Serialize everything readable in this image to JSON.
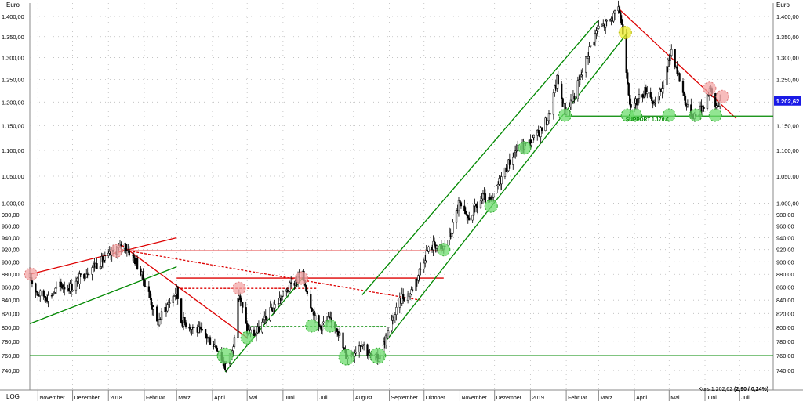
{
  "chart_data": {
    "type": "candlestick",
    "y_unit_left": "Euro",
    "y_unit_right": "Euro",
    "scale": "LOG",
    "ylim": [
      720,
      1420
    ],
    "xlim": [
      "2017-10-25",
      "2019-07-30"
    ],
    "y_ticks": [
      740,
      760,
      780,
      800,
      820,
      840,
      860,
      880,
      900,
      920,
      940,
      960,
      980,
      1000,
      1050,
      1100,
      1150,
      1200,
      1250,
      1300,
      1350,
      1400
    ],
    "y_tick_labels": [
      "740,00",
      "760,00",
      "780,00",
      "800,00",
      "820,00",
      "840,00",
      "860,00",
      "880,00",
      "900,00",
      "920,00",
      "940,00",
      "960,00",
      "980,00",
      "1.000,00",
      "1.050,00",
      "1.100,00",
      "1.150,00",
      "1.200,00",
      "1.250,00",
      "1.300,00",
      "1.350,00",
      "1.400,00"
    ],
    "x_tick_labels": [
      {
        "label": "November",
        "date": "2017-11-01"
      },
      {
        "label": "Dezember",
        "date": "2017-12-01"
      },
      {
        "label": "2018",
        "date": "2018-01-01"
      },
      {
        "label": "Februar",
        "date": "2018-02-01"
      },
      {
        "label": "März",
        "date": "2018-03-01"
      },
      {
        "label": "April",
        "date": "2018-04-01"
      },
      {
        "label": "Mai",
        "date": "2018-05-01"
      },
      {
        "label": "Juni",
        "date": "2018-06-01"
      },
      {
        "label": "Juli",
        "date": "2018-07-01"
      },
      {
        "label": "August",
        "date": "2018-08-01"
      },
      {
        "label": "September",
        "date": "2018-09-01"
      },
      {
        "label": "Oktober",
        "date": "2018-10-01"
      },
      {
        "label": "November",
        "date": "2018-11-01"
      },
      {
        "label": "Dezember",
        "date": "2018-12-01"
      },
      {
        "label": "2019",
        "date": "2019-01-01"
      },
      {
        "label": "Februar",
        "date": "2019-02-01"
      },
      {
        "label": "März",
        "date": "2019-03-01"
      },
      {
        "label": "April",
        "date": "2019-04-01"
      },
      {
        "label": "Mai",
        "date": "2019-05-01"
      },
      {
        "label": "Juni",
        "date": "2019-06-01"
      },
      {
        "label": "Juli",
        "date": "2019-07-01"
      }
    ],
    "grid": true,
    "price_path": [
      [
        "2017-10-25",
        875
      ],
      [
        "2017-11-01",
        850
      ],
      [
        "2017-11-10",
        845
      ],
      [
        "2017-11-20",
        862
      ],
      [
        "2017-12-01",
        860
      ],
      [
        "2017-12-10",
        880
      ],
      [
        "2017-12-20",
        895
      ],
      [
        "2017-12-30",
        905
      ],
      [
        "2018-01-08",
        920
      ],
      [
        "2018-01-15",
        928
      ],
      [
        "2018-01-25",
        900
      ],
      [
        "2018-02-05",
        850
      ],
      [
        "2018-02-12",
        805
      ],
      [
        "2018-02-20",
        830
      ],
      [
        "2018-03-01",
        855
      ],
      [
        "2018-03-05",
        810
      ],
      [
        "2018-03-15",
        800
      ],
      [
        "2018-03-25",
        790
      ],
      [
        "2018-04-05",
        772
      ],
      [
        "2018-04-12",
        745
      ],
      [
        "2018-04-18",
        765
      ],
      [
        "2018-04-24",
        850
      ],
      [
        "2018-05-01",
        795
      ],
      [
        "2018-05-08",
        790
      ],
      [
        "2018-05-20",
        820
      ],
      [
        "2018-06-01",
        848
      ],
      [
        "2018-06-12",
        870
      ],
      [
        "2018-06-18",
        878
      ],
      [
        "2018-06-25",
        835
      ],
      [
        "2018-07-01",
        800
      ],
      [
        "2018-07-10",
        810
      ],
      [
        "2018-07-18",
        800
      ],
      [
        "2018-07-25",
        760
      ],
      [
        "2018-08-01",
        765
      ],
      [
        "2018-08-08",
        780
      ],
      [
        "2018-08-15",
        760
      ],
      [
        "2018-08-22",
        755
      ],
      [
        "2018-08-29",
        785
      ],
      [
        "2018-09-05",
        815
      ],
      [
        "2018-09-12",
        845
      ],
      [
        "2018-09-19",
        850
      ],
      [
        "2018-09-26",
        880
      ],
      [
        "2018-10-03",
        915
      ],
      [
        "2018-10-10",
        930
      ],
      [
        "2018-10-17",
        920
      ],
      [
        "2018-10-24",
        945
      ],
      [
        "2018-10-31",
        1000
      ],
      [
        "2018-11-07",
        970
      ],
      [
        "2018-11-14",
        990
      ],
      [
        "2018-11-21",
        1010
      ],
      [
        "2018-11-28",
        1000
      ],
      [
        "2018-12-05",
        1040
      ],
      [
        "2018-12-12",
        1070
      ],
      [
        "2018-12-19",
        1100
      ],
      [
        "2018-12-27",
        1110
      ],
      [
        "2019-01-03",
        1120
      ],
      [
        "2019-01-10",
        1140
      ],
      [
        "2019-01-17",
        1170
      ],
      [
        "2019-01-24",
        1250
      ],
      [
        "2019-01-31",
        1180
      ],
      [
        "2019-02-07",
        1210
      ],
      [
        "2019-02-14",
        1260
      ],
      [
        "2019-02-21",
        1320
      ],
      [
        "2019-02-28",
        1370
      ],
      [
        "2019-03-07",
        1380
      ],
      [
        "2019-03-14",
        1400
      ],
      [
        "2019-03-19",
        1415
      ],
      [
        "2019-03-22",
        1360
      ],
      [
        "2019-03-26",
        1250
      ],
      [
        "2019-03-29",
        1180
      ],
      [
        "2019-04-05",
        1210
      ],
      [
        "2019-04-12",
        1230
      ],
      [
        "2019-04-19",
        1190
      ],
      [
        "2019-04-26",
        1240
      ],
      [
        "2019-05-03",
        1320
      ],
      [
        "2019-05-10",
        1250
      ],
      [
        "2019-05-17",
        1185
      ],
      [
        "2019-05-24",
        1170
      ],
      [
        "2019-05-31",
        1195
      ],
      [
        "2019-06-05",
        1230
      ],
      [
        "2019-06-10",
        1190
      ],
      [
        "2019-06-14",
        1202.62
      ]
    ],
    "trend_lines": [
      {
        "color": "#dd0000",
        "dash": false,
        "points": [
          [
            "2017-10-25",
            880
          ],
          [
            "2018-03-01",
            940
          ]
        ]
      },
      {
        "color": "#dd0000",
        "dash": false,
        "points": [
          [
            "2018-01-12",
            928
          ],
          [
            "2018-05-01",
            785
          ]
        ]
      },
      {
        "color": "#dd0000",
        "dash": true,
        "points": [
          [
            "2018-01-12",
            920
          ],
          [
            "2018-09-28",
            840
          ]
        ]
      },
      {
        "color": "#dd0000",
        "dash": false,
        "points": [
          [
            "2018-01-12",
            918
          ],
          [
            "2018-10-18",
            918
          ]
        ]
      },
      {
        "color": "#dd0000",
        "dash": false,
        "points": [
          [
            "2018-03-01",
            874
          ],
          [
            "2018-10-18",
            874
          ]
        ]
      },
      {
        "color": "#dd0000",
        "dash": true,
        "points": [
          [
            "2018-03-01",
            858
          ],
          [
            "2018-06-30",
            858
          ]
        ]
      },
      {
        "color": "#dd0000",
        "dash": false,
        "points": [
          [
            "2019-03-19",
            1418
          ],
          [
            "2019-06-28",
            1165
          ]
        ]
      },
      {
        "color": "#008800",
        "dash": false,
        "points": [
          [
            "2017-10-25",
            805
          ],
          [
            "2018-03-01",
            892
          ]
        ]
      },
      {
        "color": "#008800",
        "dash": false,
        "points": [
          [
            "2018-04-12",
            738
          ],
          [
            "2018-06-18",
            874
          ]
        ]
      },
      {
        "color": "#008800",
        "dash": true,
        "points": [
          [
            "2018-05-01",
            801
          ],
          [
            "2018-08-29",
            801
          ]
        ]
      },
      {
        "color": "#008800",
        "dash": false,
        "points": [
          [
            "2018-08-26",
            774
          ],
          [
            "2019-03-26",
            1360
          ]
        ]
      },
      {
        "color": "#008800",
        "dash": false,
        "points": [
          [
            "2018-08-08",
            847
          ],
          [
            "2019-02-28",
            1388
          ]
        ]
      },
      {
        "color": "#008800",
        "dash": false,
        "points": [
          [
            "2017-10-25",
            760
          ],
          [
            "2019-07-30",
            760
          ]
        ]
      },
      {
        "color": "#008800",
        "dash": false,
        "points": [
          [
            "2019-01-31",
            1170
          ],
          [
            "2019-07-30",
            1170
          ]
        ]
      }
    ],
    "markers": [
      {
        "date": "2017-10-26",
        "value": 880,
        "color": "#f4a6a6"
      },
      {
        "date": "2018-01-08",
        "value": 918,
        "color": "#f4a6a6"
      },
      {
        "date": "2018-04-24",
        "value": 858,
        "color": "#f4a6a6"
      },
      {
        "date": "2018-06-17",
        "value": 874,
        "color": "#f4a6a6"
      },
      {
        "date": "2019-06-05",
        "value": 1230,
        "color": "#f4a6a6"
      },
      {
        "date": "2019-06-16",
        "value": 1212,
        "color": "#f4a6a6"
      },
      {
        "date": "2019-03-24",
        "value": 1360,
        "color": "#ecec2a"
      },
      {
        "date": "2018-04-12",
        "value": 760,
        "color": "#6edc6e"
      },
      {
        "date": "2018-05-01",
        "value": 785,
        "color": "#6edc6e"
      },
      {
        "date": "2018-06-26",
        "value": 802,
        "color": "#6edc6e"
      },
      {
        "date": "2018-07-12",
        "value": 802,
        "color": "#6edc6e"
      },
      {
        "date": "2018-07-26",
        "value": 758,
        "color": "#6edc6e"
      },
      {
        "date": "2018-08-22",
        "value": 760,
        "color": "#6edc6e"
      },
      {
        "date": "2018-10-18",
        "value": 920,
        "color": "#6edc6e"
      },
      {
        "date": "2018-11-28",
        "value": 995,
        "color": "#6edc6e"
      },
      {
        "date": "2018-12-27",
        "value": 1105,
        "color": "#6edc6e"
      },
      {
        "date": "2019-01-31",
        "value": 1172,
        "color": "#6edc6e"
      },
      {
        "date": "2019-03-26",
        "value": 1172,
        "color": "#6edc6e"
      },
      {
        "date": "2019-04-02",
        "value": 1172,
        "color": "#6edc6e"
      },
      {
        "date": "2019-05-01",
        "value": 1172,
        "color": "#6edc6e"
      },
      {
        "date": "2019-05-24",
        "value": 1172,
        "color": "#6edc6e"
      },
      {
        "date": "2019-06-10",
        "value": 1172,
        "color": "#6edc6e"
      }
    ],
    "annotations": [
      {
        "text": "SUPPORT 1.170 €",
        "date": "2019-04-12",
        "value": 1160,
        "color": "#008800"
      }
    ],
    "last_price": {
      "value": 1202.62,
      "label": "1.202,62",
      "color": "#1a1ae6"
    },
    "footer": {
      "left": "LOG",
      "right_prefix": "Kurs:1.202,62 ",
      "right_bold": "(2,90 / 0,24%)"
    }
  }
}
